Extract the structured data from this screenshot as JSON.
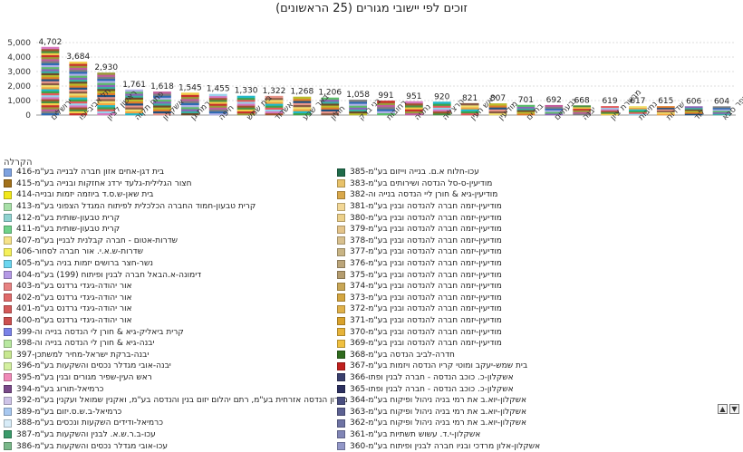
{
  "chart_data": {
    "type": "bar",
    "stacked": true,
    "title": "זוכים לפי יישובי מגורים (25 הראשונים)",
    "categories": [
      "ירושלים",
      "תל אביב-יפו",
      "ראשון לציון",
      "פתח תקוה",
      "אשקלון",
      "רמת גן",
      "חיפה",
      "בית שמש",
      "אשדוד",
      "באר שבע",
      "חולון",
      "בני ברק",
      "רחובות",
      "נתניה",
      "הרצליה",
      "ראש העין",
      "מודיעין",
      "בת ים",
      "גבעתיים",
      "יבנה",
      "מבשרת ציון",
      "נתיבות",
      "שדרות",
      "לוד",
      "כפר סבא"
    ],
    "values": [
      4702,
      3684,
      2930,
      1761,
      1618,
      1545,
      1455,
      1330,
      1322,
      1268,
      1206,
      1058,
      991,
      951,
      920,
      821,
      807,
      701,
      692,
      668,
      619,
      617,
      615,
      606,
      604
    ],
    "value_labels": [
      "4,702",
      "3,684",
      "2,930",
      "1,761",
      "1,618",
      "1,545",
      "1,455",
      "1,330",
      "1,322",
      "1,268",
      "1,206",
      "1,058",
      "991",
      "951",
      "920",
      "821",
      "807",
      "701",
      "692",
      "668",
      "619",
      "617",
      "615",
      "606",
      "604"
    ],
    "y_ticks": [
      "0",
      "1,000",
      "2,000",
      "3,000",
      "4,000",
      "5,000"
    ],
    "ylim": [
      0,
      5000
    ],
    "grid": true,
    "legend_position": "bottom"
  },
  "legend": {
    "title": "הקרלה",
    "right_column": [
      {
        "label": "עכו-חלוח א.ם. בנייה וייזום בע\"מ-385",
        "color": "#1f6b4a"
      },
      {
        "label": "מודיעין-ס-סל הנדסה ושירותים בע\"מ-383",
        "color": "#e8c26a"
      },
      {
        "label": "מודיעין-גיא & חורן ליי הנדסה בנייה וה-382",
        "color": "#d9a84a"
      },
      {
        "label": "מודיעין-יזמה חברה להנדסה ובנין בע\"מ-381",
        "color": "#f2d796"
      },
      {
        "label": "מודיעין-יזמה חברה להנדסה ובנין בע\"מ-380",
        "color": "#ecd08a"
      },
      {
        "label": "מודיעין-יזמה חברה להנדסה ובנין בע\"מ-379",
        "color": "#e4c48a"
      },
      {
        "label": "מודיעין-יזמה חברה להנדסה ובנין בע\"מ-378",
        "color": "#d8c08e"
      },
      {
        "label": "מודיעין-יזמה חברה להנדסה ובנין בע\"מ-377",
        "color": "#c8b484"
      },
      {
        "label": "מודיעין-יזמה חברה להנדסה ובנין בע\"מ-376",
        "color": "#bba57a"
      },
      {
        "label": "מודיעין-יזמה חברה להנדסה ובנין בע\"מ-375",
        "color": "#b49c6e"
      },
      {
        "label": "מודיעין-יזמה חברה להנדסה ובנין בע\"מ-374",
        "color": "#c8a656"
      },
      {
        "label": "מודיעין-יזמה חברה להנדסה ובנין בע\"מ-373",
        "color": "#d4a640"
      },
      {
        "label": "מודיעין-יזמה חברה להנדסה ובנין בע\"מ-372",
        "color": "#e0b14a"
      },
      {
        "label": "מודיעין-יזמה חברה להנדסה ובנין בע\"מ-371",
        "color": "#d9a22c"
      },
      {
        "label": "מודיעין-יזמה חברה להנדסה ובנין בע\"מ-370",
        "color": "#e6b33a"
      },
      {
        "label": "מודיעין-יזמה חברה להנדסה ובנין בע\"מ-369",
        "color": "#f0c040"
      },
      {
        "label": "חדרה-לביב הנדסה בע\"מ-368",
        "color": "#2f6b1e"
      },
      {
        "label": "בית שמש-יעקב ומוטי קריו הנדסה ויזמות בע\"מ-367",
        "color": "#c0201e"
      },
      {
        "label": "אשקלון-כ. כוכב הנדסה - חברה לבנין ופתו-366",
        "color": "#3a3f6e"
      },
      {
        "label": "אשקלון-כ. כוכב הנדסה - חברה לבנין ופתו-365",
        "color": "#2c3060"
      },
      {
        "label": "אשקלון-יוא.ב את רמי בניה ניהול ופיקוח בע\"מ-364",
        "color": "#4a4f80"
      },
      {
        "label": "אשקלון-יוא.ב את רמי בניה ניהול ופיקוח בע\"מ-363",
        "color": "#5c6192"
      },
      {
        "label": "אשקלון-יוא.ב את רמי בניה ניהול ופיקוח בע\"מ-362",
        "color": "#6e73a4"
      },
      {
        "label": "אשקלון-י.ד. עשוש תשתיות בע\"מ-361",
        "color": "#8085b6"
      },
      {
        "label": "אשקלון-אלון מרדכי ובניו חברה לבנין ופיתוח בע\"מ-360",
        "color": "#9297c8"
      }
    ],
    "left_column": [
      {
        "label": "בית דגן-אחים אזון חברה לבנייה בע\"מ-416",
        "color": "#7ea2e0"
      },
      {
        "label": "חצור הגלילית-גלעד ירדנ אחזקות ובנייה בע\"מ-415",
        "color": "#a2711a"
      },
      {
        "label": "בית שאן-ש.ס.ד ביוזמה יזמות ובנייה-414",
        "color": "#f2e81a"
      },
      {
        "label": "קרית טבעון-חמוד החברה הכלכלית לפיתוח המגדל הצפוני בע\"מ-413",
        "color": "#a8e0a8"
      },
      {
        "label": "קרית טבעון-שותית בע\"מ-412",
        "color": "#8fd3d0"
      },
      {
        "label": "קרית טבעון-שותית בע\"מ-411",
        "color": "#6fd28a"
      },
      {
        "label": "שדרות-אטום - חברה קבלנית לבניין בע\"מ-407",
        "color": "#f6e38a"
      },
      {
        "label": "שדרות-ש.א.י. אור חברה לסחור-406",
        "color": "#f5f05a"
      },
      {
        "label": "נשר-חצר ברושים יזמות בניה בע\"מ-405",
        "color": "#6ad6f0"
      },
      {
        "label": "דימונה-א.הבאל חברה לבנין ופיתוח (199) בע\"מ-404",
        "color": "#b59ae6"
      },
      {
        "label": "אור יהודה-גיגדי גרדנס בע\"מ-403",
        "color": "#e88282"
      },
      {
        "label": "אור יהודה-גיגדי גרדנס בע\"מ-402",
        "color": "#e06a6a"
      },
      {
        "label": "אור יהודה-גיגדי גרדנס בע\"מ-401",
        "color": "#d45a5a"
      },
      {
        "label": "אור יהודה-גיגדי גרדנס בע\"מ-400",
        "color": "#cc5050"
      },
      {
        "label": "קרית ביאליק-גיא & חורן לי הנדסה בנייה וה-399",
        "color": "#7a82e8"
      },
      {
        "label": "יבנה-גיא & חורן לי הנדסה בנייה וה-398",
        "color": "#b8e8a0"
      },
      {
        "label": "יבנה-ברקת ישראל-מחיר למשתכן-397",
        "color": "#c8e890"
      },
      {
        "label": "יבנה-אובי מגדלר נכסים והשקעות בע\"מ-396",
        "color": "#d4f0a0"
      },
      {
        "label": "ראש העין-שפיר מגורים ובנין בע\"מ-395",
        "color": "#f08ab8"
      },
      {
        "label": "כרמיאל-תורוג בע\"מ-394",
        "color": "#7a4a8a"
      },
      {
        "label": "כרמיאל-אמגרון הנדסה אזרחית בע\"מ, רתם יהלום יזום בנין והנדסה בע\"מ, ואקנין שמואל ועקנין בע\"מ-392",
        "color": "#cfc4e8"
      },
      {
        "label": "כרמיאל-ב.ש.ס.יזום בע\"מ-389",
        "color": "#a8c8f0"
      },
      {
        "label": "כרמיאל-ודידים השקעות ונכסים בע\"מ-388",
        "color": "#d8ecf8"
      },
      {
        "label": "עכו-ב.ר.ש.א. לבנין והשקעות בע\"מ-387",
        "color": "#3a9a6a"
      },
      {
        "label": "עכו-אובי מגדלר נכסים והשקעות בע\"מ-386",
        "color": "#7ab88a"
      }
    ]
  },
  "stack_palette": [
    "#2f6bb3",
    "#e07b2a",
    "#3da34a",
    "#c8302c",
    "#8b63b8",
    "#8a5a44",
    "#d677bd",
    "#7f7f7f",
    "#b9bb2c",
    "#22b8c9",
    "#f2cd4a",
    "#5bbd6a",
    "#e8958a",
    "#9ad0ec",
    "#c05c9c",
    "#6b4b2a",
    "#f4a640",
    "#4a8f3f",
    "#b0b0e8",
    "#1f4f7f",
    "#e45a5a",
    "#9a9a3a",
    "#3ab0a0",
    "#f0e070",
    "#a0522d"
  ],
  "controls": {
    "up_icon": "▲",
    "down_icon": "▼"
  }
}
